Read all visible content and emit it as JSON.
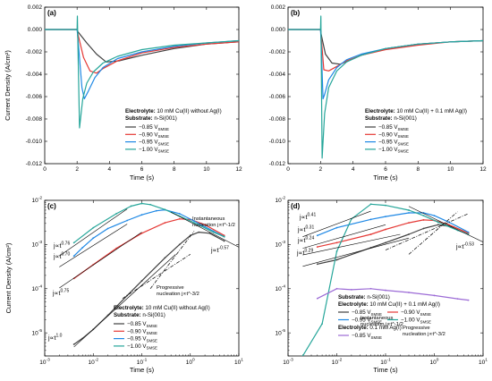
{
  "chart_data": [
    {
      "panel": "(a)",
      "type": "line",
      "xlabel": "Time (s)",
      "ylabel": "Current Density (A/cm²)",
      "xlim": [
        0,
        12
      ],
      "ylim": [
        -0.012,
        0.002
      ],
      "xticks": [
        "0",
        "2",
        "4",
        "6",
        "8",
        "10",
        "12"
      ],
      "yticks": [
        "0.002",
        "0.000",
        "-0.002",
        "-0.004",
        "-0.006",
        "-0.008",
        "-0.010",
        "-0.012"
      ],
      "legend_position": "lower-right",
      "legend_lines": [
        {
          "label": "Electrolyte:",
          "text": " 10 mM Cu(II) without Ag(I)"
        },
        {
          "label": "Substrate:",
          "text": " n-Si(001)"
        }
      ],
      "series": [
        {
          "name": "−0.85 V",
          "sub": "SMSE",
          "color": "#404040",
          "x": [
            0,
            2.0,
            2.05,
            2.6,
            3.2,
            3.8,
            4.6,
            6,
            8,
            10,
            12
          ],
          "y": [
            0,
            0,
            -0.0002,
            -0.0012,
            -0.0022,
            -0.0029,
            -0.0028,
            -0.0023,
            -0.0017,
            -0.0013,
            -0.0011
          ]
        },
        {
          "name": "−0.90 V",
          "sub": "SMSE",
          "color": "#e53935",
          "x": [
            0,
            2.0,
            2.05,
            2.4,
            2.8,
            3.2,
            3.6,
            4.5,
            6,
            8,
            10,
            12
          ],
          "y": [
            0,
            0,
            -0.0004,
            -0.0025,
            -0.0037,
            -0.0039,
            -0.0035,
            -0.0028,
            -0.0021,
            -0.0016,
            -0.0013,
            -0.0011
          ]
        },
        {
          "name": "−0.95 V",
          "sub": "SMSE",
          "color": "#1e88e5",
          "x": [
            0,
            2.0,
            2.05,
            2.3,
            2.45,
            2.7,
            3.1,
            3.6,
            4.5,
            6,
            8,
            10,
            12
          ],
          "y": [
            0,
            0,
            -0.0008,
            -0.0052,
            -0.0062,
            -0.0055,
            -0.0043,
            -0.0034,
            -0.0026,
            -0.002,
            -0.0015,
            -0.0012,
            -0.001
          ]
        },
        {
          "name": "−1.00 V",
          "sub": "SMSE",
          "color": "#26a69a",
          "x": [
            0,
            2.0,
            2.02,
            2.15,
            2.35,
            2.6,
            3.0,
            3.6,
            4.5,
            6,
            8,
            10,
            12
          ],
          "y": [
            0,
            0,
            0.0012,
            -0.0088,
            -0.0062,
            -0.0048,
            -0.0038,
            -0.003,
            -0.0024,
            -0.0018,
            -0.0014,
            -0.0012,
            -0.001
          ]
        }
      ]
    },
    {
      "panel": "(b)",
      "type": "line",
      "xlabel": "Time (s)",
      "ylabel": "",
      "xlim": [
        0,
        12
      ],
      "ylim": [
        -0.012,
        0.002
      ],
      "xticks": [
        "0",
        "2",
        "4",
        "6",
        "8",
        "10",
        "12"
      ],
      "yticks": [
        "0.002",
        "0.000",
        "-0.002",
        "-0.004",
        "-0.006",
        "-0.008",
        "-0.010",
        "-0.012"
      ],
      "legend_position": "lower-right",
      "legend_lines": [
        {
          "label": "Electrolyte:",
          "text": " 10 mM Cu(II) + 0.1 mM Ag(I)"
        },
        {
          "label": "Substrate:",
          "text": " n-Si(001)"
        }
      ],
      "series": [
        {
          "name": "−0.85 V",
          "sub": "SMSE",
          "color": "#404040",
          "x": [
            0,
            2.0,
            2.05,
            2.3,
            2.7,
            3.2,
            3.7,
            4.5,
            6,
            8,
            10,
            12
          ],
          "y": [
            0,
            0,
            -0.0005,
            -0.0022,
            -0.003,
            -0.0031,
            -0.0028,
            -0.0023,
            -0.0017,
            -0.0013,
            -0.0011,
            -0.001
          ]
        },
        {
          "name": "−0.90 V",
          "sub": "SMSE",
          "color": "#e53935",
          "x": [
            0,
            2.0,
            2.05,
            2.2,
            2.5,
            3.0,
            3.6,
            4.5,
            6,
            8,
            10,
            12
          ],
          "y": [
            0,
            0,
            -0.0008,
            -0.0036,
            -0.0037,
            -0.0033,
            -0.0028,
            -0.0023,
            -0.0018,
            -0.0014,
            -0.0011,
            -0.001
          ]
        },
        {
          "name": "−0.95 V",
          "sub": "SMSE",
          "color": "#1e88e5",
          "x": [
            0,
            2.0,
            2.03,
            2.15,
            2.25,
            2.5,
            3.0,
            3.6,
            4.5,
            6,
            8,
            10,
            12
          ],
          "y": [
            0,
            0,
            -0.001,
            -0.0062,
            -0.0058,
            -0.0045,
            -0.0034,
            -0.0027,
            -0.0022,
            -0.0017,
            -0.0013,
            -0.0011,
            -0.001
          ]
        },
        {
          "name": "−1.00 V",
          "sub": "SMSE",
          "color": "#26a69a",
          "x": [
            0,
            2.0,
            2.02,
            2.1,
            2.25,
            2.5,
            3.0,
            3.6,
            4.5,
            6,
            8,
            10,
            12
          ],
          "y": [
            0,
            0,
            0.0012,
            -0.0115,
            -0.0075,
            -0.0052,
            -0.0037,
            -0.0029,
            -0.0023,
            -0.0017,
            -0.0013,
            -0.0011,
            -0.001
          ]
        }
      ]
    },
    {
      "panel": "(c)",
      "type": "line",
      "xscale": "log",
      "yscale": "log",
      "xlabel": "Time (s)",
      "ylabel": "Current Density (A/cm²)",
      "xlim": [
        0.001,
        10
      ],
      "ylim": [
        3e-06,
        0.01
      ],
      "legend_position": "lower-right",
      "legend_lines": [
        {
          "label": "Electrolyte:",
          "text": " 10 mM Cu(II) without Ag(I)"
        },
        {
          "label": "Substrate:",
          "text": " n-Si(001)"
        }
      ],
      "series": [
        {
          "name": "−0.85 V",
          "sub": "SMSE",
          "color": "#404040",
          "x": [
            0.004,
            0.006,
            0.01,
            0.02,
            0.05,
            0.1,
            0.3,
            0.6,
            1.0,
            1.5,
            2.5,
            5
          ],
          "y": [
            5.5e-06,
            7.5e-06,
            1.2e-05,
            2.5e-05,
            7e-05,
            0.00015,
            0.0005,
            0.001,
            0.0016,
            0.0019,
            0.0018,
            0.0012
          ]
        },
        {
          "name": "−0.90 V",
          "sub": "SMSE",
          "color": "#e53935",
          "x": [
            0.004,
            0.01,
            0.03,
            0.1,
            0.3,
            0.6,
            1.0,
            2.0,
            5
          ],
          "y": [
            0.00017,
            0.00035,
            0.00082,
            0.0018,
            0.0031,
            0.0038,
            0.0037,
            0.0028,
            0.0016
          ]
        },
        {
          "name": "−0.95 V",
          "sub": "SMSE",
          "color": "#1e88e5",
          "x": [
            0.004,
            0.006,
            0.01,
            0.02,
            0.05,
            0.1,
            0.2,
            0.3,
            0.6,
            1.2,
            3,
            5
          ],
          "y": [
            0.00055,
            0.00085,
            0.0014,
            0.0023,
            0.0035,
            0.0047,
            0.0058,
            0.0061,
            0.005,
            0.0034,
            0.002,
            0.0015
          ]
        },
        {
          "name": "−1.00 V",
          "sub": "SMSE",
          "color": "#26a69a",
          "x": [
            0.004,
            0.01,
            0.03,
            0.06,
            0.1,
            0.15,
            0.3,
            0.6,
            1.2,
            3,
            5
          ],
          "y": [
            0.0011,
            0.0024,
            0.005,
            0.0074,
            0.0085,
            0.008,
            0.0062,
            0.0044,
            0.0031,
            0.0019,
            0.0015
          ]
        }
      ],
      "fits": [
        {
          "label": "j∝t",
          "exp": "0.76",
          "x": [
            0.002,
            0.05
          ],
          "y": [
            0.00055,
            0.0064
          ]
        },
        {
          "label": "j∝t",
          "exp": "0.70",
          "x": [
            0.002,
            0.05
          ],
          "y": [
            0.00031,
            0.0029
          ]
        },
        {
          "label": "j∝t",
          "exp": "0.75",
          "x": [
            0.002,
            0.1
          ],
          "y": [
            0.000104,
            0.0019
          ]
        },
        {
          "label": "j∝t",
          "exp": "1.0",
          "x": [
            0.004,
            0.5
          ],
          "y": [
            4.8e-06,
            0.0006
          ]
        },
        {
          "label": "j∝t",
          "exp": "-0.57",
          "x": [
            0.4,
            10
          ],
          "y": [
            0.0054,
            0.00087
          ]
        }
      ],
      "annotations": [
        {
          "lines": [
            "Instantaneous",
            "nucleation j∝t^-1/2"
          ]
        },
        {
          "lines": [
            "Progressive",
            "nucleation j∝t^-3/2"
          ]
        }
      ]
    },
    {
      "panel": "(d)",
      "type": "line",
      "xscale": "log",
      "yscale": "log",
      "xlabel": "Time (s)",
      "ylabel": "",
      "xlim": [
        0.001,
        10
      ],
      "ylim": [
        3e-06,
        0.01
      ],
      "legend_position": "lower-right",
      "legend_lines": [
        {
          "label": "Substrate:",
          "text": " n-Si(001)"
        },
        {
          "label": "Electrolyte:",
          "text": " 10 mM Cu(II) + 0.1 mM Ag(I)"
        },
        {
          "label": "Electrolyte:",
          "text": " 0.1 mM Ag(I)"
        }
      ],
      "series": [
        {
          "name": "−0.85 V",
          "sub": "SMSE",
          "color": "#404040",
          "x": [
            0.004,
            0.01,
            0.05,
            0.1,
            0.3,
            0.6,
            1.2,
            2.5,
            5
          ],
          "y": [
            0.00036,
            0.00045,
            0.00085,
            0.0011,
            0.0017,
            0.0023,
            0.0028,
            0.0025,
            0.0018
          ]
        },
        {
          "name": "−0.90 V",
          "sub": "SMSE",
          "color": "#e53935",
          "x": [
            0.004,
            0.01,
            0.05,
            0.1,
            0.3,
            0.6,
            1.0,
            2.0,
            5
          ],
          "y": [
            0.00088,
            0.0011,
            0.0017,
            0.0022,
            0.0031,
            0.0036,
            0.0035,
            0.0028,
            0.0018
          ]
        },
        {
          "name": "−0.95 V",
          "sub": "SMSE",
          "color": "#1e88e5",
          "x": [
            0.004,
            0.01,
            0.05,
            0.1,
            0.3,
            0.6,
            1.0,
            2.0,
            5
          ],
          "y": [
            0.0016,
            0.0024,
            0.0037,
            0.0043,
            0.0052,
            0.0052,
            0.0045,
            0.0032,
            0.0019
          ]
        },
        {
          "name": "−1.00 V",
          "sub": "SMSE",
          "color": "#26a69a",
          "x": [
            0.002,
            0.005,
            0.01,
            0.02,
            0.05,
            0.1,
            0.3,
            0.6,
            1.2,
            3,
            5
          ],
          "y": [
            3e-06,
            1.6e-05,
            0.0007,
            0.0038,
            0.0082,
            0.0077,
            0.006,
            0.0045,
            0.0032,
            0.0021,
            0.0017
          ]
        },
        {
          "name": "−0.85 V",
          "sub": "SMSE",
          "color": "#9c6bd6",
          "x": [
            0.004,
            0.01,
            0.02,
            0.05,
            0.1,
            0.3,
            1,
            3,
            5
          ],
          "y": [
            6e-05,
            0.0001,
            9.5e-05,
            0.0001,
            9.2e-05,
            8.2e-05,
            7e-05,
            5.9e-05,
            5.5e-05
          ]
        }
      ],
      "fits": [
        {
          "label": "j∝t",
          "exp": "0.41",
          "x": [
            0.002,
            0.05
          ],
          "y": [
            0.0015,
            0.0057
          ]
        },
        {
          "label": "j∝t",
          "exp": "0.31",
          "x": [
            0.002,
            0.1
          ],
          "y": [
            0.00082,
            0.0028
          ]
        },
        {
          "label": "j∝t",
          "exp": "0.24",
          "x": [
            0.002,
            0.2
          ],
          "y": [
            0.00058,
            0.0017
          ]
        },
        {
          "label": "j∝t",
          "exp": "0.29",
          "x": [
            0.002,
            0.3
          ],
          "y": [
            0.00032,
            0.0014
          ]
        },
        {
          "label": "j∝t",
          "exp": "-0.53",
          "x": [
            0.3,
            10
          ],
          "y": [
            0.0073,
            0.00114
          ]
        }
      ],
      "annotations": [
        {
          "lines": [
            "Instantaneous",
            "nucleation j∝t^-1/2"
          ]
        },
        {
          "lines": [
            "Progressive",
            "nucleation j∝t^-3/2"
          ]
        }
      ]
    }
  ]
}
